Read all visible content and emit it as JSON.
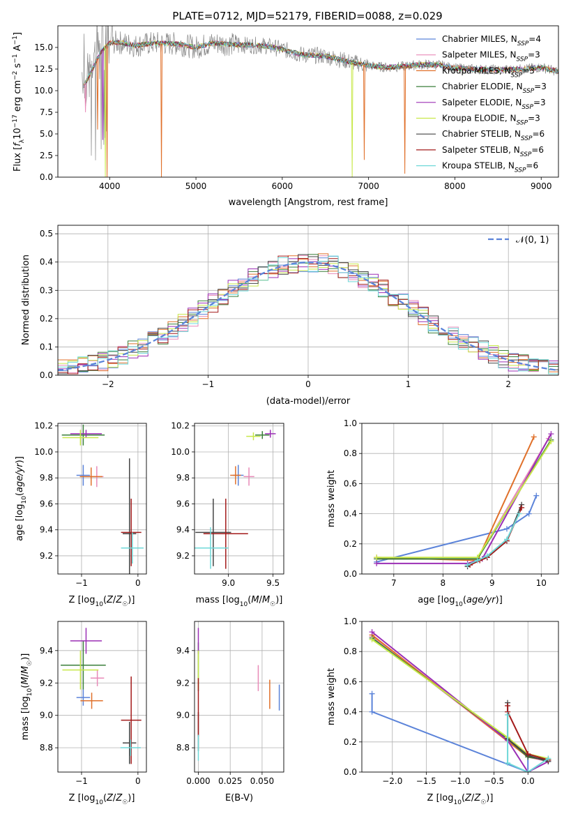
{
  "figure": {
    "title": "PLATE=0712, MJD=52179, FIBERID=0088, z=0.029"
  },
  "colors": {
    "Chabrier MILES": "#5b83d9",
    "Salpeter MILES": "#e88ab8",
    "Kroupa MILES": "#e0702a",
    "Chabrier ELODIE": "#3a7f3a",
    "Salpeter ELODIE": "#9b2fb5",
    "Kroupa ELODIE": "#c8e84a",
    "Chabrier STELIB": "#444444",
    "Salpeter STELIB": "#a31a1a",
    "Kroupa STELIB": "#6ed8d8",
    "spectrum": "#888888",
    "normal": "#5b83d9"
  },
  "chart_data": [
    {
      "id": "spectrum",
      "type": "line",
      "xlabel": "wavelength [Angstrom, rest frame]",
      "ylabel": "Flux [f_λ10^-17 erg cm^-2 s^-1 A^-1]",
      "xlim": [
        3400,
        9200
      ],
      "ylim": [
        0,
        17.5
      ],
      "xticks": [
        4000,
        5000,
        6000,
        7000,
        8000,
        9000
      ],
      "yticks": [
        0.0,
        2.5,
        5.0,
        7.5,
        10.0,
        12.5,
        15.0
      ],
      "legend_position": "top-right",
      "series": [
        {
          "name": "Chabrier MILES",
          "nssp": "4"
        },
        {
          "name": "Salpeter MILES",
          "nssp": "3"
        },
        {
          "name": "Kroupa MILES",
          "nssp": "3"
        },
        {
          "name": "Chabrier ELODIE",
          "nssp": "3"
        },
        {
          "name": "Salpeter ELODIE",
          "nssp": "3"
        },
        {
          "name": "Kroupa ELODIE",
          "nssp": "3"
        },
        {
          "name": "Chabrier STELIB",
          "nssp": "6"
        },
        {
          "name": "Salpeter STELIB",
          "nssp": "6"
        },
        {
          "name": "Kroupa STELIB",
          "nssp": "6"
        }
      ],
      "continuum": [
        [
          3700,
          10.5
        ],
        [
          3800,
          12.5
        ],
        [
          3900,
          14.5
        ],
        [
          4000,
          15.5
        ],
        [
          4100,
          15.6
        ],
        [
          4300,
          15.2
        ],
        [
          4500,
          15.5
        ],
        [
          4800,
          15.4
        ],
        [
          5000,
          15.0
        ],
        [
          5200,
          15.5
        ],
        [
          5500,
          15.3
        ],
        [
          5800,
          15.2
        ],
        [
          6000,
          14.8
        ],
        [
          6200,
          14.2
        ],
        [
          6500,
          14.0
        ],
        [
          6800,
          13.3
        ],
        [
          7000,
          12.9
        ],
        [
          7200,
          12.7
        ],
        [
          7400,
          12.8
        ],
        [
          7600,
          13.0
        ],
        [
          7800,
          13.0
        ],
        [
          8000,
          12.6
        ],
        [
          8200,
          12.5
        ],
        [
          8500,
          12.4
        ],
        [
          8800,
          12.5
        ],
        [
          9000,
          12.7
        ],
        [
          9200,
          12.2
        ]
      ],
      "model_glitches": [
        [
          3720,
          7.5
        ],
        [
          3860,
          5.5
        ],
        [
          3920,
          4.3
        ],
        [
          3950,
          0.0
        ],
        [
          3970,
          0.0
        ],
        [
          4600,
          0.0
        ],
        [
          6810,
          0.0
        ],
        [
          6950,
          2.0
        ],
        [
          7420,
          0.4
        ]
      ]
    },
    {
      "id": "residuals",
      "type": "bar",
      "xlabel": "(data-model)/error",
      "ylabel": "Normed distribution",
      "xlim": [
        -2.5,
        2.5
      ],
      "ylim": [
        0,
        0.53
      ],
      "xticks": [
        -2,
        -1,
        0,
        1,
        2
      ],
      "yticks": [
        0.0,
        0.1,
        0.2,
        0.3,
        0.4,
        0.5
      ],
      "legend": "𝒩(0, 1)",
      "legend_position": "top-right",
      "bin_start": -2.5,
      "bin_width": 0.1,
      "normal_mean": 0,
      "normal_sigma": 1
    },
    {
      "id": "age_vs_Z",
      "type": "scatter",
      "xlabel": "Z [log10(Z/Z☉)]",
      "ylabel": "age [log10(age/yr)]",
      "xlim": [
        -1.42,
        0.15
      ],
      "ylim": [
        9.06,
        10.22
      ],
      "xticks": [
        -1,
        0
      ],
      "yticks": [
        9.2,
        9.4,
        9.6,
        9.8,
        10.0,
        10.2
      ],
      "points": [
        {
          "s": "Chabrier MILES",
          "x": -0.97,
          "xerr": 0.12,
          "y": 9.82,
          "yerr": 0.08
        },
        {
          "s": "Salpeter MILES",
          "x": -0.73,
          "xerr": 0.12,
          "y": 9.81,
          "yerr": 0.08
        },
        {
          "s": "Kroupa MILES",
          "x": -0.83,
          "xerr": 0.2,
          "y": 9.81,
          "yerr": 0.07
        },
        {
          "s": "Chabrier ELODIE",
          "x": -0.97,
          "xerr": 0.38,
          "y": 10.13,
          "yerr": 0.08
        },
        {
          "s": "Salpeter ELODIE",
          "x": -0.92,
          "xerr": 0.28,
          "y": 10.14,
          "yerr": 0.03
        },
        {
          "s": "Kroupa ELODIE",
          "x": -1.02,
          "xerr": 0.32,
          "y": 10.11,
          "yerr": 0.06
        },
        {
          "s": "Chabrier STELIB",
          "x": -0.15,
          "xerr": 0.12,
          "y": 9.37,
          "yerr": 0.58
        },
        {
          "s": "Salpeter STELIB",
          "x": -0.12,
          "xerr": 0.18,
          "y": 9.38,
          "yerr": 0.26
        },
        {
          "s": "Kroupa STELIB",
          "x": -0.1,
          "xerr": 0.2,
          "y": 9.26,
          "yerr": 0.12
        }
      ]
    },
    {
      "id": "age_vs_mass",
      "type": "scatter",
      "xlabel": "mass [log10(M/M☉)]",
      "ylabel": "",
      "xlim": [
        8.62,
        9.62
      ],
      "ylim": [
        9.06,
        10.22
      ],
      "xticks": [
        9.0,
        9.5
      ],
      "yticks": [
        9.2,
        9.4,
        9.6,
        9.8,
        10.0,
        10.2
      ],
      "points": [
        {
          "s": "Chabrier MILES",
          "x": 9.11,
          "xerr": 0.06,
          "y": 9.82,
          "yerr": 0.08
        },
        {
          "s": "Salpeter MILES",
          "x": 9.23,
          "xerr": 0.06,
          "y": 9.81,
          "yerr": 0.07
        },
        {
          "s": "Kroupa MILES",
          "x": 9.08,
          "xerr": 0.06,
          "y": 9.82,
          "yerr": 0.07
        },
        {
          "s": "Chabrier ELODIE",
          "x": 9.38,
          "xerr": 0.08,
          "y": 10.13,
          "yerr": 0.03
        },
        {
          "s": "Salpeter ELODIE",
          "x": 9.47,
          "xerr": 0.06,
          "y": 10.14,
          "yerr": 0.03
        },
        {
          "s": "Kroupa ELODIE",
          "x": 9.28,
          "xerr": 0.08,
          "y": 10.12,
          "yerr": 0.03
        },
        {
          "s": "Chabrier STELIB",
          "x": 8.83,
          "xerr": 0.2,
          "y": 9.38,
          "yerr": 0.26
        },
        {
          "s": "Salpeter STELIB",
          "x": 8.97,
          "xerr": 0.25,
          "y": 9.37,
          "yerr": 0.27
        },
        {
          "s": "Kroupa STELIB",
          "x": 8.8,
          "xerr": 0.2,
          "y": 9.26,
          "yerr": 0.16
        }
      ]
    },
    {
      "id": "weight_vs_age",
      "type": "line",
      "xlabel": "age [log10(age/yr)]",
      "ylabel": "mass weight",
      "xlim": [
        6.35,
        10.35
      ],
      "ylim": [
        0,
        1
      ],
      "xticks": [
        7,
        8,
        9,
        10
      ],
      "yticks": [
        0.0,
        0.2,
        0.4,
        0.6,
        0.8,
        1.0
      ],
      "series": [
        {
          "s": "Chabrier MILES",
          "x": [
            6.65,
            9.3,
            9.75,
            9.9
          ],
          "y": [
            0.08,
            0.3,
            0.4,
            0.52
          ]
        },
        {
          "s": "Salpeter MILES",
          "x": [
            6.65,
            8.7,
            10.15
          ],
          "y": [
            0.1,
            0.1,
            0.9
          ]
        },
        {
          "s": "Kroupa MILES",
          "x": [
            6.65,
            8.7,
            9.85
          ],
          "y": [
            0.11,
            0.09,
            0.91
          ]
        },
        {
          "s": "Chabrier ELODIE",
          "x": [
            6.65,
            8.7,
            10.2
          ],
          "y": [
            0.1,
            0.1,
            0.89
          ]
        },
        {
          "s": "Salpeter ELODIE",
          "x": [
            6.65,
            8.5,
            8.8,
            10.2
          ],
          "y": [
            0.07,
            0.07,
            0.1,
            0.93
          ]
        },
        {
          "s": "Kroupa ELODIE",
          "x": [
            6.65,
            8.7,
            10.2
          ],
          "y": [
            0.11,
            0.11,
            0.88
          ]
        },
        {
          "s": "Chabrier STELIB",
          "x": [
            8.5,
            8.7,
            8.9,
            9.3,
            9.6
          ],
          "y": [
            0.05,
            0.09,
            0.11,
            0.22,
            0.46
          ]
        },
        {
          "s": "Salpeter STELIB",
          "x": [
            8.55,
            8.75,
            8.9,
            9.3,
            9.6
          ],
          "y": [
            0.06,
            0.09,
            0.11,
            0.22,
            0.44
          ]
        },
        {
          "s": "Kroupa STELIB",
          "x": [
            8.5,
            8.7,
            8.9,
            9.3,
            9.55
          ],
          "y": [
            0.06,
            0.09,
            0.12,
            0.23,
            0.4
          ]
        }
      ]
    },
    {
      "id": "mass_vs_Z",
      "type": "scatter",
      "xlabel": "Z [log10(Z/Z☉)]",
      "ylabel": "mass [log10(M/M☉)]",
      "xlim": [
        -1.42,
        0.15
      ],
      "ylim": [
        8.65,
        9.58
      ],
      "xticks": [
        -1,
        0
      ],
      "yticks": [
        8.8,
        9.0,
        9.2,
        9.4
      ],
      "points": [
        {
          "s": "Chabrier MILES",
          "x": -0.97,
          "xerr": 0.12,
          "y": 9.11,
          "yerr": 0.05
        },
        {
          "s": "Salpeter MILES",
          "x": -0.72,
          "xerr": 0.12,
          "y": 9.23,
          "yerr": 0.05
        },
        {
          "s": "Kroupa MILES",
          "x": -0.82,
          "xerr": 0.2,
          "y": 9.09,
          "yerr": 0.05
        },
        {
          "s": "Chabrier ELODIE",
          "x": -0.97,
          "xerr": 0.4,
          "y": 9.31,
          "yerr": 0.15
        },
        {
          "s": "Salpeter ELODIE",
          "x": -0.92,
          "xerr": 0.28,
          "y": 9.46,
          "yerr": 0.08
        },
        {
          "s": "Kroupa ELODIE",
          "x": -1.02,
          "xerr": 0.32,
          "y": 9.28,
          "yerr": 0.12
        },
        {
          "s": "Chabrier STELIB",
          "x": -0.15,
          "xerr": 0.12,
          "y": 8.83,
          "yerr": 0.13
        },
        {
          "s": "Salpeter STELIB",
          "x": -0.12,
          "xerr": 0.18,
          "y": 8.97,
          "yerr": 0.27
        },
        {
          "s": "Kroupa STELIB",
          "x": -0.13,
          "xerr": 0.18,
          "y": 8.8,
          "yerr": 0.05
        }
      ]
    },
    {
      "id": "mass_vs_ebv",
      "type": "scatter",
      "xlabel": "E(B-V)",
      "ylabel": "",
      "xlim": [
        -0.003,
        0.067
      ],
      "ylim": [
        8.65,
        9.58
      ],
      "xticks": [
        0.0,
        0.025,
        0.05
      ],
      "xtick_labels": [
        "0.000",
        "0.025",
        "0.050"
      ],
      "yticks": [
        8.8,
        9.0,
        9.2,
        9.4
      ],
      "points": [
        {
          "s": "Chabrier MILES",
          "x": 0.0635,
          "y": 9.11,
          "yerr": 0.08
        },
        {
          "s": "Salpeter MILES",
          "x": 0.047,
          "y": 9.23,
          "yerr": 0.08
        },
        {
          "s": "Kroupa MILES",
          "x": 0.056,
          "y": 9.13,
          "yerr": 0.09
        },
        {
          "s": "Chabrier ELODIE",
          "x": 0.0,
          "y": 9.3,
          "yerr": 0.15
        },
        {
          "s": "Salpeter ELODIE",
          "x": 0.0,
          "y": 9.46,
          "yerr": 0.08
        },
        {
          "s": "Kroupa ELODIE",
          "x": 0.0,
          "y": 9.28,
          "yerr": 0.12
        },
        {
          "s": "Chabrier STELIB",
          "x": 0.0,
          "y": 8.9,
          "yerr": 0.12
        },
        {
          "s": "Salpeter STELIB",
          "x": 0.0,
          "y": 9.05,
          "yerr": 0.18
        },
        {
          "s": "Kroupa STELIB",
          "x": 0.0,
          "y": 8.8,
          "yerr": 0.08
        }
      ]
    },
    {
      "id": "weight_vs_Z",
      "type": "line",
      "xlabel": "Z [log10(Z/Z☉)]",
      "ylabel": "mass weight",
      "xlim": [
        -2.45,
        0.45
      ],
      "ylim": [
        0,
        1
      ],
      "xticks": [
        -2.0,
        -1.5,
        -1.0,
        -0.5,
        0.0
      ],
      "xtick_labels": [
        "−2.0",
        "−1.5",
        "−1.0",
        "−0.5",
        "0.0"
      ],
      "yticks": [
        0.0,
        0.2,
        0.4,
        0.6,
        0.8,
        1.0
      ],
      "series": [
        {
          "s": "Chabrier MILES",
          "x": [
            -2.3,
            -2.3,
            0.0,
            0.0,
            0.3
          ],
          "y": [
            0.52,
            0.4,
            0.0,
            0.1,
            0.08
          ]
        },
        {
          "s": "Salpeter MILES",
          "x": [
            -2.3,
            0.0,
            0.3
          ],
          "y": [
            0.9,
            0.1,
            0.07
          ]
        },
        {
          "s": "Kroupa MILES",
          "x": [
            -2.3,
            0.0,
            0.3
          ],
          "y": [
            0.91,
            0.1,
            0.08
          ]
        },
        {
          "s": "Chabrier ELODIE",
          "x": [
            -2.3,
            -0.3,
            0.0,
            0.3
          ],
          "y": [
            0.89,
            0.22,
            0.1,
            0.08
          ]
        },
        {
          "s": "Salpeter ELODIE",
          "x": [
            -2.3,
            -0.3,
            0.0,
            0.3
          ],
          "y": [
            0.93,
            0.21,
            0.0,
            0.07
          ]
        },
        {
          "s": "Kroupa ELODIE",
          "x": [
            -2.3,
            -0.3,
            0.0,
            0.3
          ],
          "y": [
            0.88,
            0.23,
            0.12,
            0.09
          ]
        },
        {
          "s": "Chabrier STELIB",
          "x": [
            -0.3,
            -0.3,
            0.0,
            0.3
          ],
          "y": [
            0.46,
            0.22,
            0.11,
            0.07
          ]
        },
        {
          "s": "Salpeter STELIB",
          "x": [
            -0.3,
            -0.3,
            0.0,
            0.3
          ],
          "y": [
            0.44,
            0.4,
            0.12,
            0.08
          ]
        },
        {
          "s": "Kroupa STELIB",
          "x": [
            -0.3,
            -0.3,
            0.0,
            0.3
          ],
          "y": [
            0.38,
            0.06,
            0.0,
            0.09
          ]
        }
      ]
    }
  ]
}
